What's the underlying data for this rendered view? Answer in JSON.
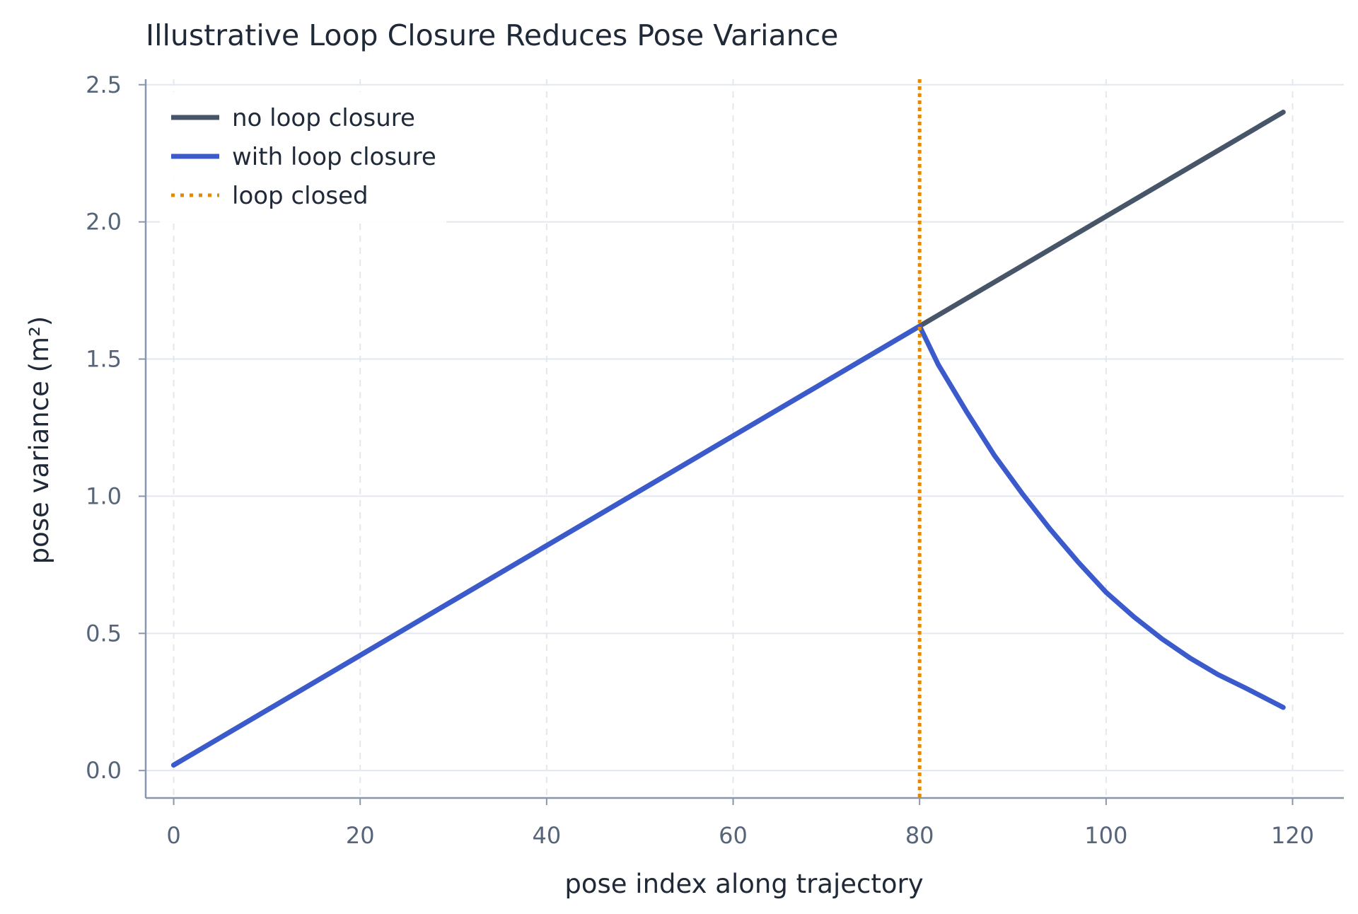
{
  "chart_data": {
    "type": "line",
    "title": "Illustrative Loop Closure Reduces Pose Variance",
    "xlabel": "pose index along trajectory",
    "ylabel": "pose variance (m²)",
    "xlim": [
      -3,
      125.5
    ],
    "ylim": [
      -0.1,
      2.52
    ],
    "xticks": [
      0,
      20,
      40,
      60,
      80,
      100,
      120
    ],
    "yticks": [
      0.0,
      0.5,
      1.0,
      1.5,
      2.0,
      2.5
    ],
    "xtick_labels": [
      "0",
      "20",
      "40",
      "60",
      "80",
      "100",
      "120"
    ],
    "ytick_labels": [
      "0.0",
      "0.5",
      "1.0",
      "1.5",
      "2.0",
      "2.5"
    ],
    "grid": true,
    "legend_position": "top-left",
    "series": [
      {
        "name": "no loop closure",
        "color": "#475569",
        "style": "solid",
        "x": [
          0,
          10,
          20,
          30,
          40,
          50,
          60,
          70,
          80,
          90,
          100,
          110,
          119
        ],
        "y": [
          0.02,
          0.22,
          0.42,
          0.62,
          0.82,
          1.02,
          1.22,
          1.42,
          1.62,
          1.82,
          2.02,
          2.22,
          2.4
        ]
      },
      {
        "name": "with loop closure",
        "color": "#3b5bcc",
        "style": "solid",
        "x": [
          0,
          10,
          20,
          30,
          40,
          50,
          60,
          70,
          80,
          82,
          85,
          88,
          91,
          94,
          97,
          100,
          103,
          106,
          109,
          112,
          115,
          119
        ],
        "y": [
          0.02,
          0.22,
          0.42,
          0.62,
          0.82,
          1.02,
          1.22,
          1.42,
          1.62,
          1.48,
          1.31,
          1.15,
          1.01,
          0.88,
          0.76,
          0.65,
          0.56,
          0.48,
          0.41,
          0.35,
          0.3,
          0.23
        ]
      }
    ],
    "vlines": [
      {
        "name": "loop closed",
        "x": 80,
        "color": "#e08a0b",
        "style": "dotted"
      }
    ]
  }
}
